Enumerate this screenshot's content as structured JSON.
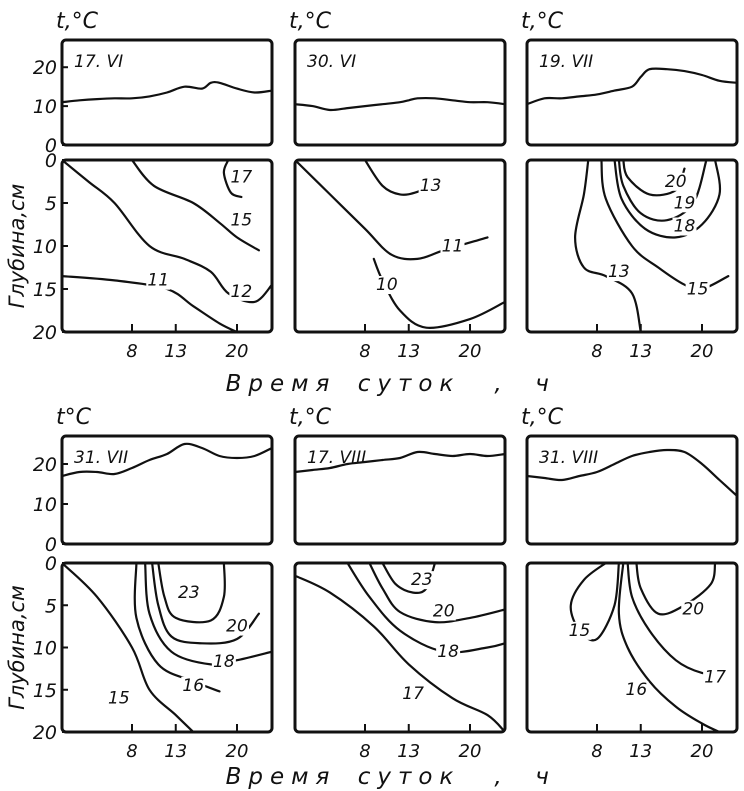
{
  "chart_data": {
    "type": "line",
    "unit_label_top_row": "t,°C",
    "unit_label_bottom_row": "t°C",
    "unit_label_bottom_row_alt": "t,°C",
    "ylabel_bottom": "Глубина,см",
    "xlabel": "Время суток, ч",
    "xlabel_parts": [
      "Время",
      "суток",
      ",",
      "ч"
    ],
    "temp_ylim": [
      0,
      27
    ],
    "temp_ticks": [
      "0",
      "10",
      "20"
    ],
    "depth_ylim": [
      0,
      20
    ],
    "depth_ticks": [
      "0",
      "5",
      "10",
      "15",
      "20"
    ],
    "x_range": [
      0,
      24
    ],
    "x_ticks": [
      {
        "value": 8,
        "label": "8"
      },
      {
        "value": 13,
        "label": "13"
      },
      {
        "value": 20,
        "label": "20"
      }
    ],
    "panels": [
      {
        "date": "17. VI",
        "air_temp": {
          "x": [
            0,
            2,
            4,
            6,
            8,
            10,
            12,
            14,
            16,
            17,
            18,
            20,
            22,
            24
          ],
          "y": [
            11,
            11.5,
            11.8,
            12,
            12,
            12.5,
            13.5,
            15,
            14.5,
            16,
            16,
            14.5,
            13.5,
            14
          ]
        },
        "isotherms": [
          {
            "label": "17",
            "points": [
              [
                19,
                0
              ],
              [
                18.5,
                1.5
              ],
              [
                19.3,
                3.8
              ],
              [
                20.5,
                4.3
              ]
            ],
            "label_pos": [
              20.5,
              2.5
            ]
          },
          {
            "label": "15",
            "points": [
              [
                8,
                0
              ],
              [
                10.5,
                3
              ],
              [
                15,
                5
              ],
              [
                18,
                7.3
              ],
              [
                20,
                9
              ],
              [
                22.5,
                10.5
              ]
            ],
            "label_pos": [
              20.5,
              7.5
            ]
          },
          {
            "label": "12",
            "points": [
              [
                0,
                0
              ],
              [
                3,
                2.5
              ],
              [
                6,
                5
              ],
              [
                10,
                10
              ],
              [
                14,
                11.5
              ],
              [
                17,
                13
              ],
              [
                19,
                15.5
              ],
              [
                22,
                16.5
              ],
              [
                24,
                14.5
              ]
            ],
            "label_pos": [
              20.5,
              15.8
            ]
          },
          {
            "label": "11",
            "points": [
              [
                0,
                13.5
              ],
              [
                6,
                14
              ],
              [
                12,
                15
              ],
              [
                15,
                17
              ],
              [
                18,
                19
              ],
              [
                20,
                20
              ]
            ],
            "label_pos": [
              11,
              14.5
            ]
          }
        ]
      },
      {
        "date": "30. VI",
        "air_temp": {
          "x": [
            0,
            2,
            4,
            6,
            8,
            10,
            12,
            13,
            14,
            16,
            18,
            20,
            22,
            24
          ],
          "y": [
            10.5,
            10,
            9,
            9.5,
            10,
            10.5,
            11,
            11.5,
            12,
            12,
            11.5,
            11,
            11,
            10.5
          ]
        },
        "isotherms": [
          {
            "label": "13",
            "points": [
              [
                8,
                0
              ],
              [
                10,
                3
              ],
              [
                12,
                4
              ],
              [
                14,
                3.7
              ],
              [
                16.5,
                2.5
              ]
            ],
            "label_pos": [
              15.5,
              3.5
            ]
          },
          {
            "label": "11",
            "points": [
              [
                0,
                0
              ],
              [
                4,
                4
              ],
              [
                8,
                8
              ],
              [
                11,
                11
              ],
              [
                14,
                11.5
              ],
              [
                17,
                10.5
              ],
              [
                22,
                9
              ]
            ],
            "label_pos": [
              18,
              10.5
            ]
          },
          {
            "label": "10",
            "points": [
              [
                9,
                11.5
              ],
              [
                10,
                14
              ],
              [
                12,
                17.5
              ],
              [
                15,
                19.5
              ],
              [
                20,
                18.5
              ],
              [
                24,
                16.5
              ]
            ],
            "label_pos": [
              10.5,
              15
            ]
          }
        ]
      },
      {
        "date": "19. VII",
        "air_temp": {
          "x": [
            0,
            2,
            4,
            6,
            8,
            10,
            12,
            13,
            14,
            16,
            18,
            20,
            22,
            24
          ],
          "y": [
            10.5,
            12,
            12,
            12.5,
            13,
            14,
            15,
            17.5,
            19.5,
            19.5,
            19,
            18,
            16.5,
            16
          ]
        },
        "isotherms": [
          {
            "label": "20",
            "points": [
              [
                11,
                0
              ],
              [
                11.5,
                2
              ],
              [
                14,
                4
              ],
              [
                17,
                3.5
              ],
              [
                18,
                1
              ]
            ],
            "label_pos": [
              17,
              3
            ]
          },
          {
            "label": "19",
            "points": [
              [
                10.5,
                0
              ],
              [
                11,
                3
              ],
              [
                13,
                6.2
              ],
              [
                16,
                7
              ],
              [
                19,
                5
              ],
              [
                20.5,
                0
              ]
            ],
            "label_pos": [
              18,
              5.5
            ]
          },
          {
            "label": "18",
            "points": [
              [
                10,
                0
              ],
              [
                10.8,
                4.5
              ],
              [
                13.5,
                8
              ],
              [
                17,
                9
              ],
              [
                20,
                7.5
              ],
              [
                22,
                4
              ],
              [
                21.5,
                0
              ]
            ],
            "label_pos": [
              18,
              8.2
            ]
          },
          {
            "label": "15",
            "points": [
              [
                8.5,
                0
              ],
              [
                9,
                4.5
              ],
              [
                12,
                10
              ],
              [
                15,
                12.5
              ],
              [
                18,
                14.5
              ],
              [
                20,
                15
              ],
              [
                23,
                13.5
              ]
            ],
            "label_pos": [
              19.5,
              15.5
            ]
          },
          {
            "label": "13",
            "points": [
              [
                7,
                0
              ],
              [
                6.5,
                4
              ],
              [
                5.5,
                9
              ],
              [
                6.5,
                12.5
              ],
              [
                9,
                13.5
              ],
              [
                12,
                15.5
              ],
              [
                13,
                20
              ]
            ],
            "label_pos": [
              10.5,
              13.5
            ]
          }
        ]
      },
      {
        "date": "31. VII",
        "air_temp": {
          "x": [
            0,
            2,
            4,
            6,
            8,
            10,
            12,
            14,
            16,
            18,
            20,
            22,
            24
          ],
          "y": [
            17,
            18,
            18,
            17.5,
            19,
            21,
            22.5,
            25,
            24,
            22,
            21.5,
            22,
            24
          ]
        },
        "isotherms": [
          {
            "label": "23",
            "points": [
              [
                11,
                0
              ],
              [
                11.7,
                4
              ],
              [
                13,
                6.5
              ],
              [
                17,
                6.8
              ],
              [
                18.5,
                4
              ],
              [
                18.5,
                0
              ]
            ],
            "label_pos": [
              14.5,
              4
            ]
          },
          {
            "label": "20",
            "points": [
              [
                10.3,
                0
              ],
              [
                11,
                5
              ],
              [
                12.5,
                8.7
              ],
              [
                16,
                9.5
              ],
              [
                20,
                9
              ],
              [
                22.5,
                6
              ]
            ],
            "label_pos": [
              20,
              8
            ]
          },
          {
            "label": "18",
            "points": [
              [
                9.5,
                0
              ],
              [
                10,
                6
              ],
              [
                12.5,
                10.5
              ],
              [
                17,
                12
              ],
              [
                20,
                11.5
              ],
              [
                24,
                10.5
              ]
            ],
            "label_pos": [
              18.5,
              12.2
            ]
          },
          {
            "label": "16",
            "points": [
              [
                8.5,
                0
              ],
              [
                8.5,
                6.5
              ],
              [
                11,
                12
              ],
              [
                15,
                14
              ],
              [
                18,
                15.2
              ]
            ],
            "label_pos": [
              15,
              15
            ]
          },
          {
            "label": "15",
            "points": [
              [
                0,
                0
              ],
              [
                4,
                4
              ],
              [
                8,
                10
              ],
              [
                10,
                15
              ],
              [
                13,
                18
              ],
              [
                15,
                20
              ]
            ],
            "label_pos": [
              6.5,
              16.5
            ]
          }
        ]
      },
      {
        "date": "17. VIII",
        "air_temp": {
          "x": [
            0,
            2,
            4,
            6,
            8,
            10,
            12,
            14,
            16,
            18,
            20,
            22,
            24
          ],
          "y": [
            18,
            18.5,
            19,
            20,
            20.5,
            21,
            21.5,
            23,
            22.5,
            22,
            22.5,
            22,
            22.5
          ]
        },
        "isotherms": [
          {
            "label": "23",
            "points": [
              [
                10,
                0
              ],
              [
                11.5,
                2.5
              ],
              [
                13.5,
                3.5
              ],
              [
                15,
                3
              ],
              [
                16,
                0
              ]
            ],
            "label_pos": [
              14.5,
              2.5
            ]
          },
          {
            "label": "20",
            "points": [
              [
                8.5,
                0
              ],
              [
                10,
                3
              ],
              [
                12,
                5.8
              ],
              [
                16,
                7
              ],
              [
                20,
                6.5
              ],
              [
                24,
                5.5
              ]
            ],
            "label_pos": [
              17,
              6.2
            ]
          },
          {
            "label": "18",
            "points": [
              [
                6,
                0
              ],
              [
                8.5,
                4
              ],
              [
                12,
                8
              ],
              [
                17,
                10.5
              ],
              [
                22,
                10
              ],
              [
                24,
                9.5
              ]
            ],
            "label_pos": [
              17.5,
              11
            ]
          },
          {
            "label": "17",
            "points": [
              [
                0,
                1.5
              ],
              [
                4,
                3.5
              ],
              [
                9,
                7.5
              ],
              [
                13,
                12
              ],
              [
                18,
                16
              ],
              [
                22,
                18
              ],
              [
                24,
                20
              ]
            ],
            "label_pos": [
              13.5,
              16
            ]
          }
        ]
      },
      {
        "date": "31. VIII",
        "air_temp": {
          "x": [
            0,
            2,
            4,
            6,
            8,
            10,
            12,
            14,
            16,
            18,
            20,
            22,
            24
          ],
          "y": [
            17,
            16.5,
            16,
            17,
            18,
            20,
            22,
            23,
            23.5,
            23,
            20,
            16,
            12
          ]
        },
        "isotherms": [
          {
            "label": "15",
            "points": [
              [
                9,
                0
              ],
              [
                6.5,
                2
              ],
              [
                5,
                5
              ],
              [
                6,
                8
              ],
              [
                8,
                9
              ],
              [
                10,
                5
              ],
              [
                10.5,
                0
              ]
            ],
            "label_pos": [
              6,
              8.5
            ]
          },
          {
            "label": "20",
            "points": [
              [
                12.5,
                0
              ],
              [
                13,
                3
              ],
              [
                15,
                6
              ],
              [
                18,
                5
              ],
              [
                21,
                2.5
              ],
              [
                21.5,
                0
              ]
            ],
            "label_pos": [
              19,
              6
            ]
          },
          {
            "label": "17",
            "points": [
              [
                11.5,
                0
              ],
              [
                12,
                4
              ],
              [
                14,
                8
              ],
              [
                17,
                11.5
              ],
              [
                20,
                13
              ],
              [
                22.5,
                13
              ]
            ],
            "label_pos": [
              21.5,
              14
            ]
          },
          {
            "label": "16",
            "points": [
              [
                11,
                0
              ],
              [
                10.5,
                6
              ],
              [
                11.5,
                10
              ],
              [
                14,
                14
              ],
              [
                17,
                17
              ],
              [
                20,
                19
              ],
              [
                22,
                20
              ]
            ],
            "label_pos": [
              12.5,
              15.5
            ]
          }
        ]
      }
    ]
  }
}
